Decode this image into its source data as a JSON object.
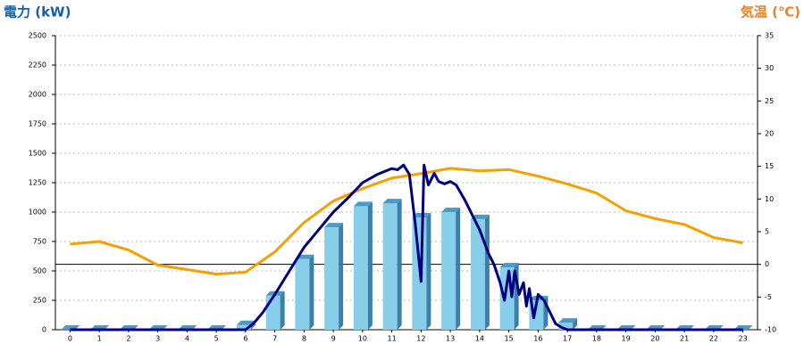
{
  "chart_data": {
    "type": "bar",
    "title": "電力 (kW)",
    "y2_title": "気温 (℃)",
    "categories": [
      "0",
      "1",
      "2",
      "3",
      "4",
      "5",
      "6",
      "7",
      "8",
      "9",
      "10",
      "11",
      "12",
      "13",
      "14",
      "15",
      "16",
      "17",
      "18",
      "19",
      "20",
      "21",
      "22",
      "23"
    ],
    "values": [
      0,
      0,
      0,
      0,
      0,
      0,
      40,
      290,
      600,
      870,
      1050,
      1075,
      955,
      1000,
      940,
      530,
      250,
      60,
      0,
      0,
      0,
      0,
      0,
      0
    ],
    "color": "#87ceeb",
    "ylim": [
      0,
      2500
    ],
    "yticks": [
      0,
      250,
      500,
      750,
      1000,
      1250,
      1500,
      1750,
      2000,
      2250,
      2500
    ],
    "y2lim": [
      -10,
      35
    ],
    "y2ticks": [
      -10,
      -5,
      0,
      5,
      10,
      15,
      20,
      25,
      30,
      35
    ],
    "xlim": [
      -0.5,
      23.5
    ],
    "grid": true,
    "power_line": {
      "color": "#000080",
      "x": [
        0,
        6,
        6.3,
        6.6,
        7,
        7.5,
        8,
        8.5,
        9,
        9.5,
        10,
        10.5,
        11,
        11.2,
        11.4,
        11.6,
        11.8,
        12,
        12.1,
        12.25,
        12.45,
        12.6,
        12.8,
        13,
        13.2,
        13.5,
        14,
        14.3,
        14.5,
        14.7,
        14.85,
        15,
        15.1,
        15.2,
        15.35,
        15.5,
        15.6,
        15.7,
        15.85,
        16,
        16.2,
        16.4,
        16.6,
        16.8,
        17,
        23
      ],
      "values": [
        0,
        0,
        60,
        150,
        300,
        500,
        700,
        850,
        1000,
        1120,
        1250,
        1320,
        1370,
        1360,
        1400,
        1320,
        900,
        410,
        1400,
        1230,
        1330,
        1260,
        1240,
        1260,
        1230,
        1100,
        850,
        650,
        550,
        400,
        250,
        500,
        280,
        500,
        300,
        400,
        200,
        350,
        100,
        300,
        250,
        150,
        50,
        20,
        0,
        0
      ]
    },
    "temperature_line": {
      "color": "#f5a000",
      "axis": "y2",
      "values": [
        3.1,
        3.5,
        2.2,
        -0.1,
        -0.8,
        -1.5,
        -1.2,
        1.9,
        6.4,
        9.7,
        11.6,
        13.2,
        13.9,
        14.7,
        14.3,
        14.5,
        13.5,
        12.3,
        10.9,
        8.2,
        7,
        6.1,
        4.1,
        3.3
      ]
    }
  }
}
